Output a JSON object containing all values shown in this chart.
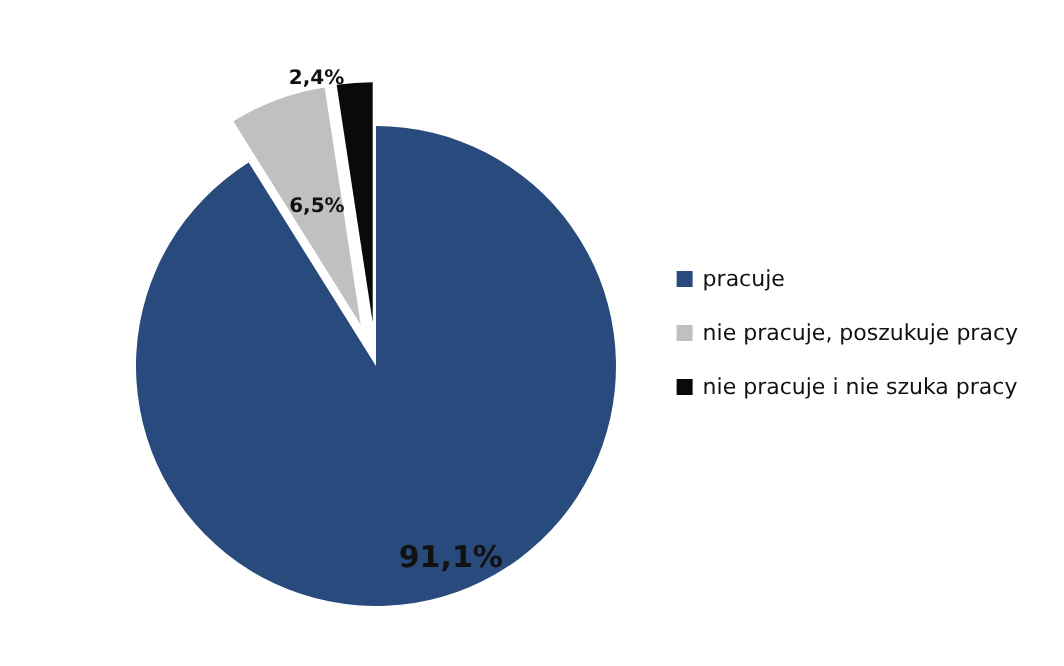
{
  "chart_data": {
    "type": "pie",
    "categories": [
      "pracuje",
      "nie pracuje, poszukuje pracy",
      "nie pracuje i nie szuka pracy"
    ],
    "values": [
      91.1,
      6.5,
      2.4
    ],
    "colors": [
      "#294a7c",
      "#c0c0c0",
      "#0a0a0a"
    ],
    "value_labels": [
      "91,1%",
      "6,5%",
      "2,4%"
    ],
    "legend": "right"
  }
}
